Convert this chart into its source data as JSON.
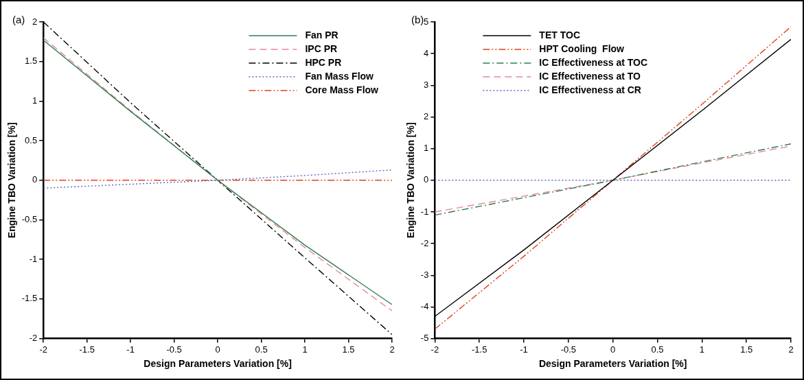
{
  "chart_data": [
    {
      "type": "line",
      "annotations": [
        "(a)"
      ],
      "xlabel": "Design Parameters Variation [%]",
      "ylabel": "Engine TBO Variation [%]",
      "x": [
        -2,
        -1,
        0,
        1,
        2
      ],
      "xlim": [
        -2,
        2
      ],
      "ylim": [
        -2,
        2
      ],
      "xticks": [
        -2,
        -1.5,
        -1,
        -0.5,
        0,
        0.5,
        1,
        1.5,
        2
      ],
      "yticks": [
        -2,
        -1.5,
        -1,
        -0.5,
        0,
        0.5,
        1,
        1.5,
        2
      ],
      "grid": false,
      "legend": "top right",
      "marker": "none",
      "series": [
        {
          "name": "Fan PR",
          "color": "#2e7d4f",
          "line_style": "solid",
          "values": [
            1.77,
            0.87,
            0,
            -0.82,
            -1.57
          ]
        },
        {
          "name": "IPC PR",
          "color": "#e8889a",
          "line_style": "dashed",
          "values": [
            1.8,
            0.88,
            0,
            -0.85,
            -1.65
          ]
        },
        {
          "name": "HPC PR",
          "color": "#000000",
          "line_style": "dashdot",
          "values": [
            2.0,
            0.98,
            0,
            -0.98,
            -1.95
          ]
        },
        {
          "name": "Fan Mass Flow",
          "color": "#5b62c8",
          "line_style": "dotted",
          "values": [
            -0.1,
            -0.05,
            0,
            0.06,
            0.13
          ]
        },
        {
          "name": "Core Mass Flow",
          "color": "#e0401c",
          "line_style": "dashdotdot",
          "values": [
            0,
            0,
            0,
            0,
            0
          ]
        }
      ]
    },
    {
      "type": "line",
      "annotations": [
        "(b)"
      ],
      "xlabel": "Design Parameters Variation [%]",
      "ylabel": "Engine TBO Variation [%]",
      "x": [
        -2,
        -1,
        0,
        1,
        2
      ],
      "xlim": [
        -2,
        2
      ],
      "ylim": [
        -5,
        5
      ],
      "xticks": [
        -2,
        -1.5,
        -1,
        -0.5,
        0,
        0.5,
        1,
        1.5,
        2
      ],
      "yticks": [
        -5,
        -4,
        -3,
        -2,
        -1,
        0,
        1,
        2,
        3,
        4,
        5
      ],
      "grid": false,
      "legend": "top left",
      "marker": "none",
      "series": [
        {
          "name": "TET TOC",
          "color": "#000000",
          "line_style": "solid",
          "values": [
            -4.3,
            -2.2,
            0,
            2.2,
            4.45
          ]
        },
        {
          "name": "HPT Cooling  Flow",
          "color": "#e0401c",
          "line_style": "dashdotdot",
          "values": [
            -4.7,
            -2.4,
            0,
            2.4,
            4.85
          ]
        },
        {
          "name": "IC Effectiveness at TOC",
          "color": "#2e7d4f",
          "line_style": "dashdot",
          "values": [
            -1.1,
            -0.55,
            0,
            0.58,
            1.15
          ]
        },
        {
          "name": "IC Effectiveness at TO",
          "color": "#e8889a",
          "line_style": "dashed",
          "values": [
            -1.0,
            -0.5,
            0,
            0.55,
            1.08
          ]
        },
        {
          "name": "IC Effectiveness at CR",
          "color": "#5b62c8",
          "line_style": "dotted",
          "values": [
            0,
            0,
            0,
            0,
            0
          ]
        }
      ]
    }
  ]
}
